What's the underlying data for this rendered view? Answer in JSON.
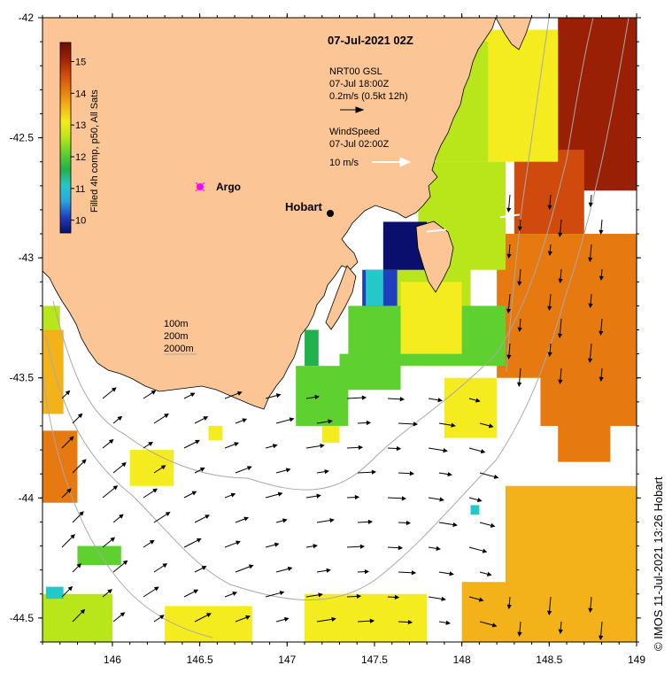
{
  "map": {
    "title": "07-Jul-2021 02Z",
    "lon_range": [
      145.6,
      149.0
    ],
    "lat_range": [
      -44.6,
      -42.0
    ],
    "x_ticks": [
      {
        "value": 146,
        "label": "146"
      },
      {
        "value": 146.5,
        "label": "146.5"
      },
      {
        "value": 147,
        "label": "147"
      },
      {
        "value": 147.5,
        "label": "147.5"
      },
      {
        "value": 148,
        "label": "148"
      },
      {
        "value": 148.5,
        "label": "148.5"
      },
      {
        "value": 149,
        "label": "149"
      }
    ],
    "y_ticks": [
      {
        "value": -42,
        "label": "-42"
      },
      {
        "value": -42.5,
        "label": "-42.5"
      },
      {
        "value": -43,
        "label": "-43"
      },
      {
        "value": -43.5,
        "label": "-43.5"
      },
      {
        "value": -44,
        "label": "-44"
      },
      {
        "value": -44.5,
        "label": "-44.5"
      }
    ],
    "colors": {
      "land": "#fbc595",
      "ocean_nodata": "#ffffff",
      "contour": "#a8a8a8",
      "argo_marker": "#ff00ff",
      "wind_arrow": "#ffffff"
    }
  },
  "colorbar": {
    "label": "Filled 4h comp, p50, All Sats",
    "min": 9.6,
    "max": 15.6,
    "ticks": [
      "10",
      "11",
      "12",
      "13",
      "14",
      "15"
    ],
    "colors": [
      "#0a0f6e",
      "#1f3fbe",
      "#2aa6e0",
      "#25c8c8",
      "#22b04a",
      "#5ed030",
      "#b8e61a",
      "#f4ec1e",
      "#f3b21a",
      "#e67a10",
      "#cf4a0c",
      "#9a2005",
      "#6a0f02"
    ]
  },
  "legend": {
    "current_source": "NRT00 GSL",
    "current_time": "07-Jul 18:00Z",
    "current_scale": "0.2m/s (0.5kt 12h)",
    "wind_label": "WindSpeed",
    "wind_time": "07-Jul 02:00Z",
    "wind_scale": "10 m/s",
    "depths": [
      "100m",
      "200m",
      "2000m"
    ]
  },
  "places": {
    "argo": "Argo",
    "hobart": "Hobart"
  },
  "credit": "©  IMOS 11-Jul-2021 13:26 Hobart",
  "layers": {
    "sst_patches": [
      {
        "lon": 148.55,
        "lat": -42.0,
        "w": 0.45,
        "h": 0.72,
        "val": 15.3
      },
      {
        "lon": 148.3,
        "lat": -42.55,
        "w": 0.4,
        "h": 0.35,
        "val": 14.4
      },
      {
        "lon": 148.2,
        "lat": -42.9,
        "w": 0.8,
        "h": 0.6,
        "val": 14.2
      },
      {
        "lon": 148.45,
        "lat": -43.45,
        "w": 0.55,
        "h": 0.25,
        "val": 14.0
      },
      {
        "lon": 148.05,
        "lat": -42.05,
        "w": 0.5,
        "h": 0.55,
        "val": 13.3
      },
      {
        "lon": 147.85,
        "lat": -42.1,
        "w": 0.3,
        "h": 0.5,
        "val": 12.4
      },
      {
        "lon": 147.75,
        "lat": -42.6,
        "w": 0.5,
        "h": 0.45,
        "val": 12.8
      },
      {
        "lon": 147.55,
        "lat": -42.9,
        "w": 0.5,
        "h": 0.4,
        "val": 12.6
      },
      {
        "lon": 147.35,
        "lat": -43.2,
        "w": 0.9,
        "h": 0.25,
        "val": 12.2
      },
      {
        "lon": 147.65,
        "lat": -43.1,
        "w": 0.35,
        "h": 0.3,
        "val": 13.0
      },
      {
        "lon": 147.05,
        "lat": -43.45,
        "w": 0.3,
        "h": 0.25,
        "val": 12.0
      },
      {
        "lon": 147.3,
        "lat": -43.4,
        "w": 0.35,
        "h": 0.15,
        "val": 12.3
      },
      {
        "lon": 147.55,
        "lat": -42.85,
        "w": 0.25,
        "h": 0.2,
        "val": 9.8
      },
      {
        "lon": 147.43,
        "lat": -43.05,
        "w": 0.2,
        "h": 0.15,
        "val": 10.2
      },
      {
        "lon": 147.45,
        "lat": -43.05,
        "w": 0.1,
        "h": 0.15,
        "val": 11.0
      },
      {
        "lon": 147.1,
        "lat": -43.3,
        "w": 0.08,
        "h": 0.15,
        "val": 11.5
      },
      {
        "lon": 145.6,
        "lat": -43.2,
        "w": 0.1,
        "h": 0.3,
        "val": 12.5
      },
      {
        "lon": 145.6,
        "lat": -43.3,
        "w": 0.12,
        "h": 0.35,
        "val": 13.8
      },
      {
        "lon": 145.6,
        "lat": -43.72,
        "w": 0.2,
        "h": 0.3,
        "val": 14.2
      },
      {
        "lon": 147.9,
        "lat": -43.5,
        "w": 0.3,
        "h": 0.25,
        "val": 13.2
      },
      {
        "lon": 148.55,
        "lat": -43.6,
        "w": 0.3,
        "h": 0.25,
        "val": 13.9
      },
      {
        "lon": 148.25,
        "lat": -43.95,
        "w": 0.75,
        "h": 0.55,
        "val": 13.6
      },
      {
        "lon": 148.0,
        "lat": -44.35,
        "w": 1.0,
        "h": 0.25,
        "val": 13.4
      },
      {
        "lon": 147.1,
        "lat": -44.4,
        "w": 0.7,
        "h": 0.2,
        "val": 12.9
      },
      {
        "lon": 146.3,
        "lat": -44.45,
        "w": 0.5,
        "h": 0.15,
        "val": 13.1
      },
      {
        "lon": 145.6,
        "lat": -44.4,
        "w": 0.4,
        "h": 0.2,
        "val": 12.7
      },
      {
        "lon": 145.8,
        "lat": -44.2,
        "w": 0.25,
        "h": 0.08,
        "val": 12.1
      },
      {
        "lon": 146.1,
        "lat": -43.8,
        "w": 0.25,
        "h": 0.15,
        "val": 13.0
      },
      {
        "lon": 145.62,
        "lat": -44.37,
        "w": 0.1,
        "h": 0.05,
        "val": 10.9
      },
      {
        "lon": 148.05,
        "lat": -44.03,
        "w": 0.05,
        "h": 0.04,
        "val": 11.2
      },
      {
        "lon": 147.2,
        "lat": -43.7,
        "w": 0.1,
        "h": 0.07,
        "val": 13.2
      },
      {
        "lon": 146.55,
        "lat": -43.7,
        "w": 0.08,
        "h": 0.06,
        "val": 13.3
      }
    ],
    "wind_barbs": [
      {
        "lon": 147.85,
        "lat": -42.88,
        "dir_deg": 0
      },
      {
        "lon": 148.27,
        "lat": -42.82,
        "dir_deg": 10
      }
    ]
  }
}
